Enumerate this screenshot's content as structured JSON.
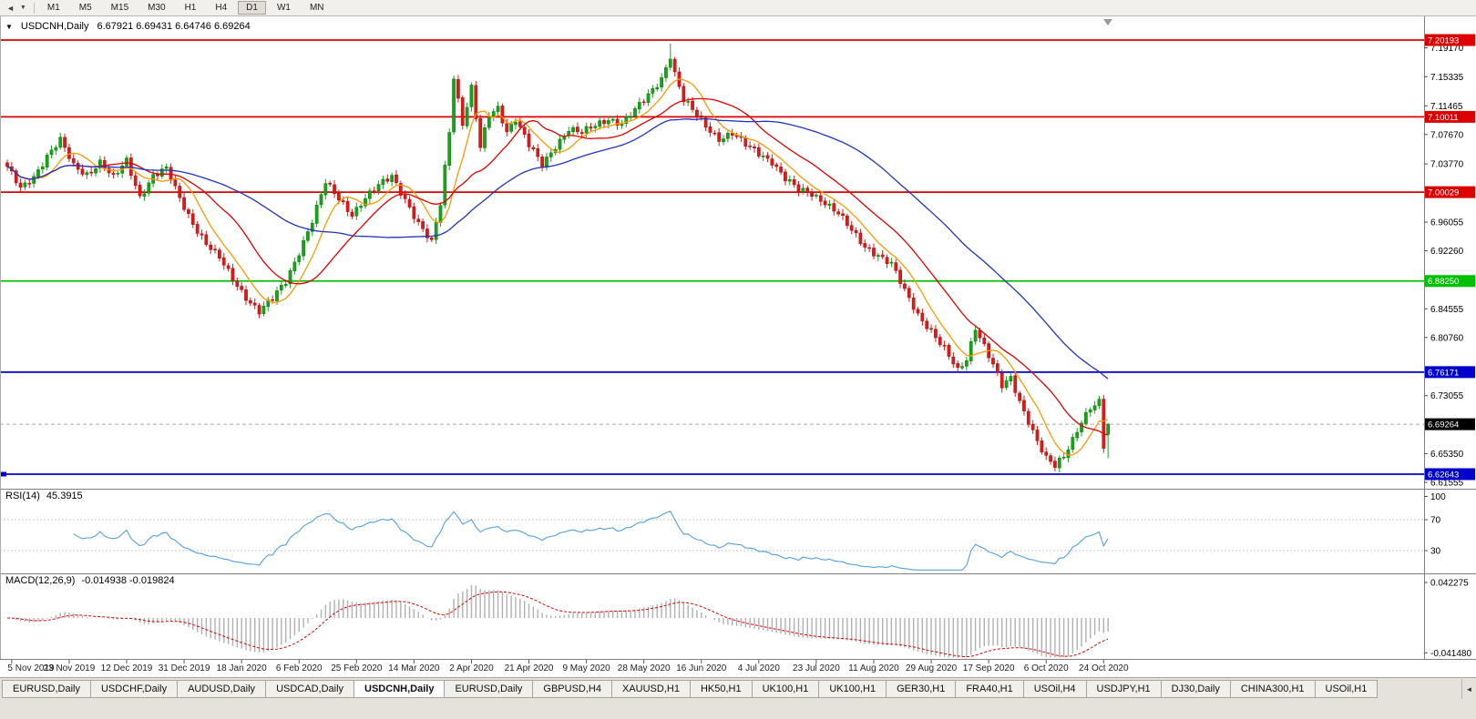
{
  "toolbar": {
    "timeframes": [
      "M1",
      "M5",
      "M15",
      "M30",
      "H1",
      "H4",
      "D1",
      "W1",
      "MN"
    ],
    "active_timeframe": "D1",
    "scroll_back_icon": "◄",
    "dropdown_icon": "▼"
  },
  "chart": {
    "symbol": "USDCNH,Daily",
    "ohlc": "6.67921 6.69431 6.64746 6.69264",
    "axis": {
      "plain_labels": [
        {
          "text": "7.19170",
          "price": 7.1917
        },
        {
          "text": "7.15335",
          "price": 7.15335
        },
        {
          "text": "7.11465",
          "price": 7.11465
        },
        {
          "text": "7.07670",
          "price": 7.0767
        },
        {
          "text": "7.03770",
          "price": 7.0377
        },
        {
          "text": "6.96055",
          "price": 6.96055
        },
        {
          "text": "6.92260",
          "price": 6.9226
        },
        {
          "text": "6.84555",
          "price": 6.84555
        },
        {
          "text": "6.80760",
          "price": 6.8076
        },
        {
          "text": "6.73055",
          "price": 6.73055
        },
        {
          "text": "6.65350",
          "price": 6.6535
        },
        {
          "text": "6.61555",
          "price": 6.61555
        }
      ]
    }
  },
  "rsi_panel": {
    "name": "RSI(14)",
    "value": "45.3915",
    "line_color": "#55a0dd",
    "axis_labels": [
      {
        "text": "100",
        "value": 100
      },
      {
        "text": "70",
        "value": 70
      },
      {
        "text": "30",
        "value": 30
      }
    ]
  },
  "macd_panel": {
    "name": "MACD(12,26,9)",
    "values": "-0.014938 -0.019824",
    "histogram_color": "#b0b0b0",
    "signal_color": "#dd0000",
    "axis_labels": [
      {
        "text": "0.042275",
        "value": 0.042275
      },
      {
        "text": "-0.041480",
        "value": -0.04148
      }
    ]
  },
  "tabs": {
    "items": [
      "EURUSD,Daily",
      "USDCHF,Daily",
      "AUDUSD,Daily",
      "USDCAD,Daily",
      "USDCNH,Daily",
      "EURUSD,Daily",
      "GBPUSD,H4",
      "XAUUSD,H1",
      "HK50,H1",
      "UK100,H1",
      "UK100,H1",
      "GER30,H1",
      "FRA40,H1",
      "USOil,H4",
      "USDJPY,H1",
      "DJ30,Daily",
      "CHINA300,H1",
      "USOil,H1"
    ],
    "active_index": 4,
    "scroll_left_icon": "◄"
  },
  "chart_data": {
    "type": "candlestick",
    "symbol": "USDCNH",
    "timeframe": "Daily",
    "candle_count": 250,
    "up_color": "#18a418",
    "down_color": "#e01818",
    "current_price": 6.69264,
    "current_price_label": "6.69264",
    "last_candle": {
      "open": 6.67921,
      "high": 6.69431,
      "low": 6.64746,
      "close": 6.69264
    },
    "levels": [
      {
        "price": 7.20193,
        "label": "7.20193",
        "color": "#dd0000"
      },
      {
        "price": 7.10011,
        "label": "7.10011",
        "color": "#dd0000"
      },
      {
        "price": 7.00029,
        "label": "7.00029",
        "color": "#dd0000"
      },
      {
        "price": 6.8825,
        "label": "6.88250",
        "color": "#00c000"
      },
      {
        "price": 6.76171,
        "label": "6.76171",
        "color": "#0000cc"
      },
      {
        "price": 6.62643,
        "label": "6.62643",
        "color": "#0000cc"
      }
    ],
    "moving_averages": [
      {
        "period": 8,
        "color": "#ff9900"
      },
      {
        "period": 20,
        "color": "#e00000"
      },
      {
        "period": 50,
        "color": "#2233bb"
      }
    ],
    "indicators": [
      {
        "name": "RSI",
        "period": 14,
        "current": 45.3915,
        "levels": [
          30,
          70
        ]
      },
      {
        "name": "MACD",
        "fast": 12,
        "slow": 26,
        "signal": 9,
        "current_macd": -0.014938,
        "current_signal": -0.019824
      }
    ],
    "dates": [
      "5 Nov 2019",
      "23 Nov 2019",
      "12 Dec 2019",
      "31 Dec 2019",
      "18 Jan 2020",
      "6 Feb 2020",
      "25 Feb 2020",
      "14 Mar 2020",
      "2 Apr 2020",
      "21 Apr 2020",
      "9 May 2020",
      "28 May 2020",
      "16 Jun 2020",
      "4 Jul 2020",
      "23 Jul 2020",
      "11 Aug 2020",
      "29 Aug 2020",
      "17 Sep 2020",
      "6 Oct 2020",
      "24 Oct 2020"
    ],
    "price_keypoints": [
      [
        0,
        7.032
      ],
      [
        3,
        7.005
      ],
      [
        6,
        7.022
      ],
      [
        9,
        7.048
      ],
      [
        12,
        7.068
      ],
      [
        15,
        7.035
      ],
      [
        18,
        7.025
      ],
      [
        21,
        7.04
      ],
      [
        24,
        7.018
      ],
      [
        27,
        7.042
      ],
      [
        30,
        6.995
      ],
      [
        33,
        7.022
      ],
      [
        36,
        7.03
      ],
      [
        39,
        6.992
      ],
      [
        42,
        6.96
      ],
      [
        45,
        6.932
      ],
      [
        48,
        6.912
      ],
      [
        51,
        6.885
      ],
      [
        54,
        6.862
      ],
      [
        57,
        6.842
      ],
      [
        60,
        6.858
      ],
      [
        63,
        6.882
      ],
      [
        66,
        6.922
      ],
      [
        69,
        6.962
      ],
      [
        72,
        7.012
      ],
      [
        75,
        6.992
      ],
      [
        78,
        6.972
      ],
      [
        81,
        6.992
      ],
      [
        84,
        7.008
      ],
      [
        87,
        7.022
      ],
      [
        90,
        6.992
      ],
      [
        93,
        6.958
      ],
      [
        96,
        6.932
      ],
      [
        98,
        6.985
      ],
      [
        100,
        7.082
      ],
      [
        101,
        7.155
      ],
      [
        103,
        7.092
      ],
      [
        105,
        7.138
      ],
      [
        107,
        7.058
      ],
      [
        109,
        7.102
      ],
      [
        111,
        7.112
      ],
      [
        113,
        7.082
      ],
      [
        115,
        7.098
      ],
      [
        118,
        7.062
      ],
      [
        121,
        7.035
      ],
      [
        124,
        7.062
      ],
      [
        127,
        7.085
      ],
      [
        130,
        7.078
      ],
      [
        133,
        7.088
      ],
      [
        136,
        7.098
      ],
      [
        139,
        7.092
      ],
      [
        142,
        7.108
      ],
      [
        145,
        7.128
      ],
      [
        148,
        7.152
      ],
      [
        150,
        7.182
      ],
      [
        151,
        7.158
      ],
      [
        153,
        7.122
      ],
      [
        155,
        7.108
      ],
      [
        158,
        7.088
      ],
      [
        161,
        7.072
      ],
      [
        164,
        7.078
      ],
      [
        167,
        7.062
      ],
      [
        170,
        7.052
      ],
      [
        173,
        7.042
      ],
      [
        176,
        7.018
      ],
      [
        179,
        7.002
      ],
      [
        182,
        6.998
      ],
      [
        185,
        6.988
      ],
      [
        188,
        6.972
      ],
      [
        191,
        6.948
      ],
      [
        194,
        6.928
      ],
      [
        197,
        6.918
      ],
      [
        200,
        6.905
      ],
      [
        203,
        6.868
      ],
      [
        206,
        6.838
      ],
      [
        209,
        6.818
      ],
      [
        212,
        6.792
      ],
      [
        215,
        6.762
      ],
      [
        217,
        6.778
      ],
      [
        219,
        6.822
      ],
      [
        221,
        6.798
      ],
      [
        223,
        6.772
      ],
      [
        225,
        6.742
      ],
      [
        227,
        6.752
      ],
      [
        229,
        6.722
      ],
      [
        231,
        6.698
      ],
      [
        233,
        6.672
      ],
      [
        235,
        6.648
      ],
      [
        237,
        6.636
      ],
      [
        239,
        6.648
      ],
      [
        241,
        6.672
      ],
      [
        243,
        6.698
      ],
      [
        245,
        6.716
      ],
      [
        247,
        6.722
      ],
      [
        248,
        6.662
      ],
      [
        249,
        6.69264
      ]
    ]
  }
}
